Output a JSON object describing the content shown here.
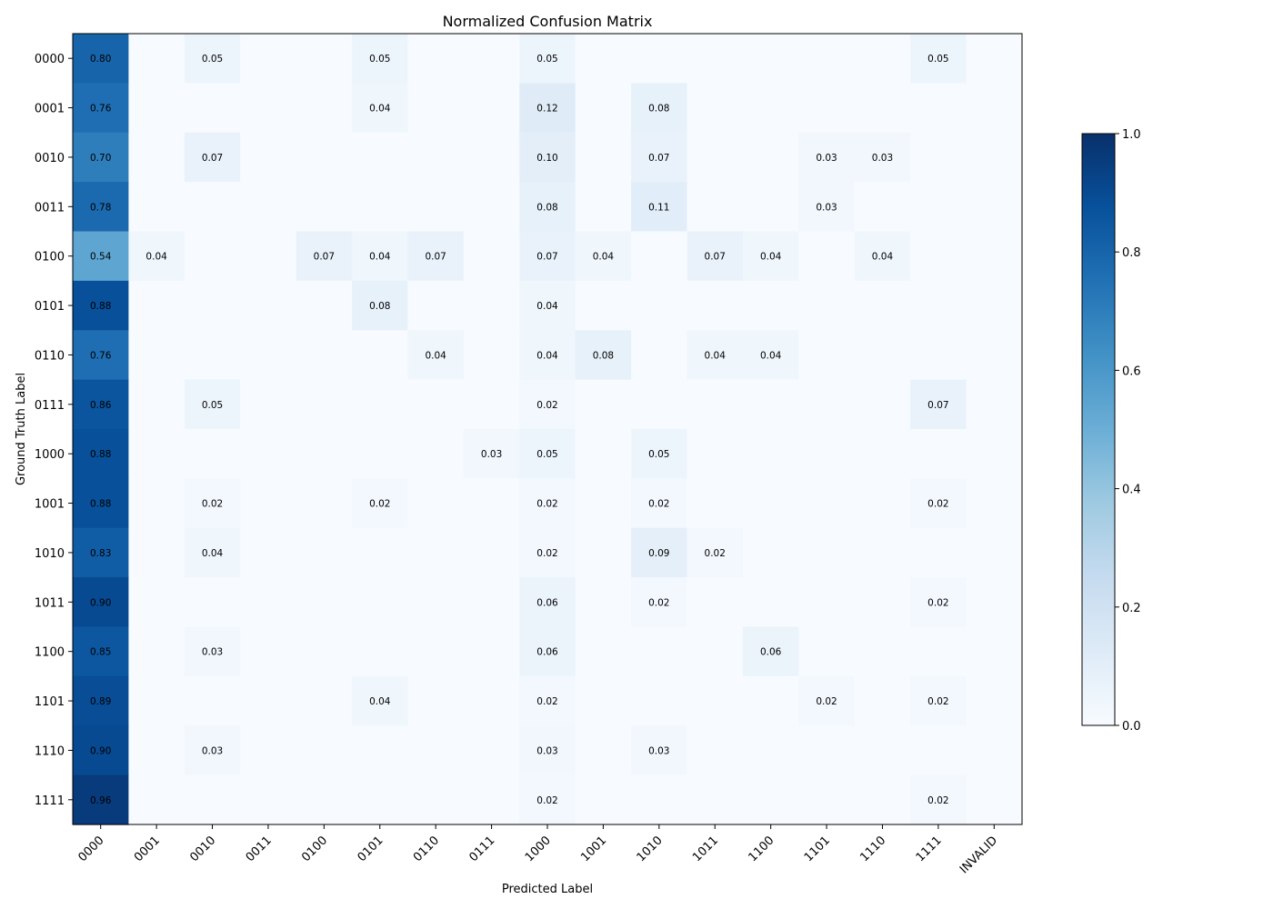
{
  "chart_data": {
    "type": "heatmap",
    "title": "Normalized Confusion Matrix",
    "xlabel": "Predicted Label",
    "ylabel": "Ground Truth Label",
    "x_categories": [
      "0000",
      "0001",
      "0010",
      "0011",
      "0100",
      "0101",
      "0110",
      "0111",
      "1000",
      "1001",
      "1010",
      "1011",
      "1100",
      "1101",
      "1110",
      "1111",
      "INVALID"
    ],
    "y_categories": [
      "0000",
      "0001",
      "0010",
      "0011",
      "0100",
      "0101",
      "0110",
      "0111",
      "1000",
      "1001",
      "1010",
      "1011",
      "1100",
      "1101",
      "1110",
      "1111"
    ],
    "cells": [
      {
        "row": "0000",
        "col": "0000",
        "value": 0.8,
        "label": "0.80"
      },
      {
        "row": "0000",
        "col": "0010",
        "value": 0.05,
        "label": "0.05"
      },
      {
        "row": "0000",
        "col": "0101",
        "value": 0.05,
        "label": "0.05"
      },
      {
        "row": "0000",
        "col": "1000",
        "value": 0.05,
        "label": "0.05"
      },
      {
        "row": "0000",
        "col": "1111",
        "value": 0.05,
        "label": "0.05"
      },
      {
        "row": "0001",
        "col": "0000",
        "value": 0.76,
        "label": "0.76"
      },
      {
        "row": "0001",
        "col": "0101",
        "value": 0.04,
        "label": "0.04"
      },
      {
        "row": "0001",
        "col": "1000",
        "value": 0.12,
        "label": "0.12"
      },
      {
        "row": "0001",
        "col": "1010",
        "value": 0.08,
        "label": "0.08"
      },
      {
        "row": "0010",
        "col": "0000",
        "value": 0.7,
        "label": "0.70"
      },
      {
        "row": "0010",
        "col": "0010",
        "value": 0.07,
        "label": "0.07"
      },
      {
        "row": "0010",
        "col": "1000",
        "value": 0.1,
        "label": "0.10"
      },
      {
        "row": "0010",
        "col": "1010",
        "value": 0.07,
        "label": "0.07"
      },
      {
        "row": "0010",
        "col": "1101",
        "value": 0.03,
        "label": "0.03"
      },
      {
        "row": "0010",
        "col": "1110",
        "value": 0.03,
        "label": "0.03"
      },
      {
        "row": "0011",
        "col": "0000",
        "value": 0.78,
        "label": "0.78"
      },
      {
        "row": "0011",
        "col": "1000",
        "value": 0.08,
        "label": "0.08"
      },
      {
        "row": "0011",
        "col": "1010",
        "value": 0.11,
        "label": "0.11"
      },
      {
        "row": "0011",
        "col": "1101",
        "value": 0.03,
        "label": "0.03"
      },
      {
        "row": "0100",
        "col": "0000",
        "value": 0.54,
        "label": "0.54"
      },
      {
        "row": "0100",
        "col": "0001",
        "value": 0.04,
        "label": "0.04"
      },
      {
        "row": "0100",
        "col": "0100",
        "value": 0.07,
        "label": "0.07"
      },
      {
        "row": "0100",
        "col": "0101",
        "value": 0.04,
        "label": "0.04"
      },
      {
        "row": "0100",
        "col": "0110",
        "value": 0.07,
        "label": "0.07"
      },
      {
        "row": "0100",
        "col": "1000",
        "value": 0.07,
        "label": "0.07"
      },
      {
        "row": "0100",
        "col": "1001",
        "value": 0.04,
        "label": "0.04"
      },
      {
        "row": "0100",
        "col": "1011",
        "value": 0.07,
        "label": "0.07"
      },
      {
        "row": "0100",
        "col": "1100",
        "value": 0.04,
        "label": "0.04"
      },
      {
        "row": "0100",
        "col": "1110",
        "value": 0.04,
        "label": "0.04"
      },
      {
        "row": "0101",
        "col": "0000",
        "value": 0.88,
        "label": "0.88"
      },
      {
        "row": "0101",
        "col": "0101",
        "value": 0.08,
        "label": "0.08"
      },
      {
        "row": "0101",
        "col": "1000",
        "value": 0.04,
        "label": "0.04"
      },
      {
        "row": "0110",
        "col": "0000",
        "value": 0.76,
        "label": "0.76"
      },
      {
        "row": "0110",
        "col": "0110",
        "value": 0.04,
        "label": "0.04"
      },
      {
        "row": "0110",
        "col": "1000",
        "value": 0.04,
        "label": "0.04"
      },
      {
        "row": "0110",
        "col": "1001",
        "value": 0.08,
        "label": "0.08"
      },
      {
        "row": "0110",
        "col": "1011",
        "value": 0.04,
        "label": "0.04"
      },
      {
        "row": "0110",
        "col": "1100",
        "value": 0.04,
        "label": "0.04"
      },
      {
        "row": "0111",
        "col": "0000",
        "value": 0.86,
        "label": "0.86"
      },
      {
        "row": "0111",
        "col": "0010",
        "value": 0.05,
        "label": "0.05"
      },
      {
        "row": "0111",
        "col": "1000",
        "value": 0.02,
        "label": "0.02"
      },
      {
        "row": "0111",
        "col": "1111",
        "value": 0.07,
        "label": "0.07"
      },
      {
        "row": "1000",
        "col": "0000",
        "value": 0.88,
        "label": "0.88"
      },
      {
        "row": "1000",
        "col": "0111",
        "value": 0.03,
        "label": "0.03"
      },
      {
        "row": "1000",
        "col": "1000",
        "value": 0.05,
        "label": "0.05"
      },
      {
        "row": "1000",
        "col": "1010",
        "value": 0.05,
        "label": "0.05"
      },
      {
        "row": "1001",
        "col": "0000",
        "value": 0.88,
        "label": "0.88"
      },
      {
        "row": "1001",
        "col": "0010",
        "value": 0.02,
        "label": "0.02"
      },
      {
        "row": "1001",
        "col": "0101",
        "value": 0.02,
        "label": "0.02"
      },
      {
        "row": "1001",
        "col": "1000",
        "value": 0.02,
        "label": "0.02"
      },
      {
        "row": "1001",
        "col": "1010",
        "value": 0.02,
        "label": "0.02"
      },
      {
        "row": "1001",
        "col": "1111",
        "value": 0.02,
        "label": "0.02"
      },
      {
        "row": "1010",
        "col": "0000",
        "value": 0.83,
        "label": "0.83"
      },
      {
        "row": "1010",
        "col": "0010",
        "value": 0.04,
        "label": "0.04"
      },
      {
        "row": "1010",
        "col": "1000",
        "value": 0.02,
        "label": "0.02"
      },
      {
        "row": "1010",
        "col": "1010",
        "value": 0.09,
        "label": "0.09"
      },
      {
        "row": "1010",
        "col": "1011",
        "value": 0.02,
        "label": "0.02"
      },
      {
        "row": "1011",
        "col": "0000",
        "value": 0.9,
        "label": "0.90"
      },
      {
        "row": "1011",
        "col": "1000",
        "value": 0.06,
        "label": "0.06"
      },
      {
        "row": "1011",
        "col": "1010",
        "value": 0.02,
        "label": "0.02"
      },
      {
        "row": "1011",
        "col": "1111",
        "value": 0.02,
        "label": "0.02"
      },
      {
        "row": "1100",
        "col": "0000",
        "value": 0.85,
        "label": "0.85"
      },
      {
        "row": "1100",
        "col": "0010",
        "value": 0.03,
        "label": "0.03"
      },
      {
        "row": "1100",
        "col": "1000",
        "value": 0.06,
        "label": "0.06"
      },
      {
        "row": "1100",
        "col": "1100",
        "value": 0.06,
        "label": "0.06"
      },
      {
        "row": "1101",
        "col": "0000",
        "value": 0.89,
        "label": "0.89"
      },
      {
        "row": "1101",
        "col": "0101",
        "value": 0.04,
        "label": "0.04"
      },
      {
        "row": "1101",
        "col": "1000",
        "value": 0.02,
        "label": "0.02"
      },
      {
        "row": "1101",
        "col": "1101",
        "value": 0.02,
        "label": "0.02"
      },
      {
        "row": "1101",
        "col": "1111",
        "value": 0.02,
        "label": "0.02"
      },
      {
        "row": "1110",
        "col": "0000",
        "value": 0.9,
        "label": "0.90"
      },
      {
        "row": "1110",
        "col": "0010",
        "value": 0.03,
        "label": "0.03"
      },
      {
        "row": "1110",
        "col": "1000",
        "value": 0.03,
        "label": "0.03"
      },
      {
        "row": "1110",
        "col": "1010",
        "value": 0.03,
        "label": "0.03"
      },
      {
        "row": "1111",
        "col": "0000",
        "value": 0.96,
        "label": "0.96"
      },
      {
        "row": "1111",
        "col": "1000",
        "value": 0.02,
        "label": "0.02"
      },
      {
        "row": "1111",
        "col": "1111",
        "value": 0.02,
        "label": "0.02"
      }
    ],
    "zero_value": 0.0,
    "colormap": "Blues",
    "colorbar": {
      "range": [
        0.0,
        1.0
      ],
      "ticks": [
        0.0,
        0.2,
        0.4,
        0.6,
        0.8,
        1.0
      ],
      "tick_labels": [
        "0.0",
        "0.2",
        "0.4",
        "0.6",
        "0.8",
        "1.0"
      ]
    },
    "grid": false
  },
  "colors": {
    "cmap_stops": [
      "#f7fbff",
      "#deebf7",
      "#c6dbef",
      "#9ecae1",
      "#6baed6",
      "#4292c6",
      "#2171b5",
      "#08519c",
      "#08306b"
    ]
  }
}
